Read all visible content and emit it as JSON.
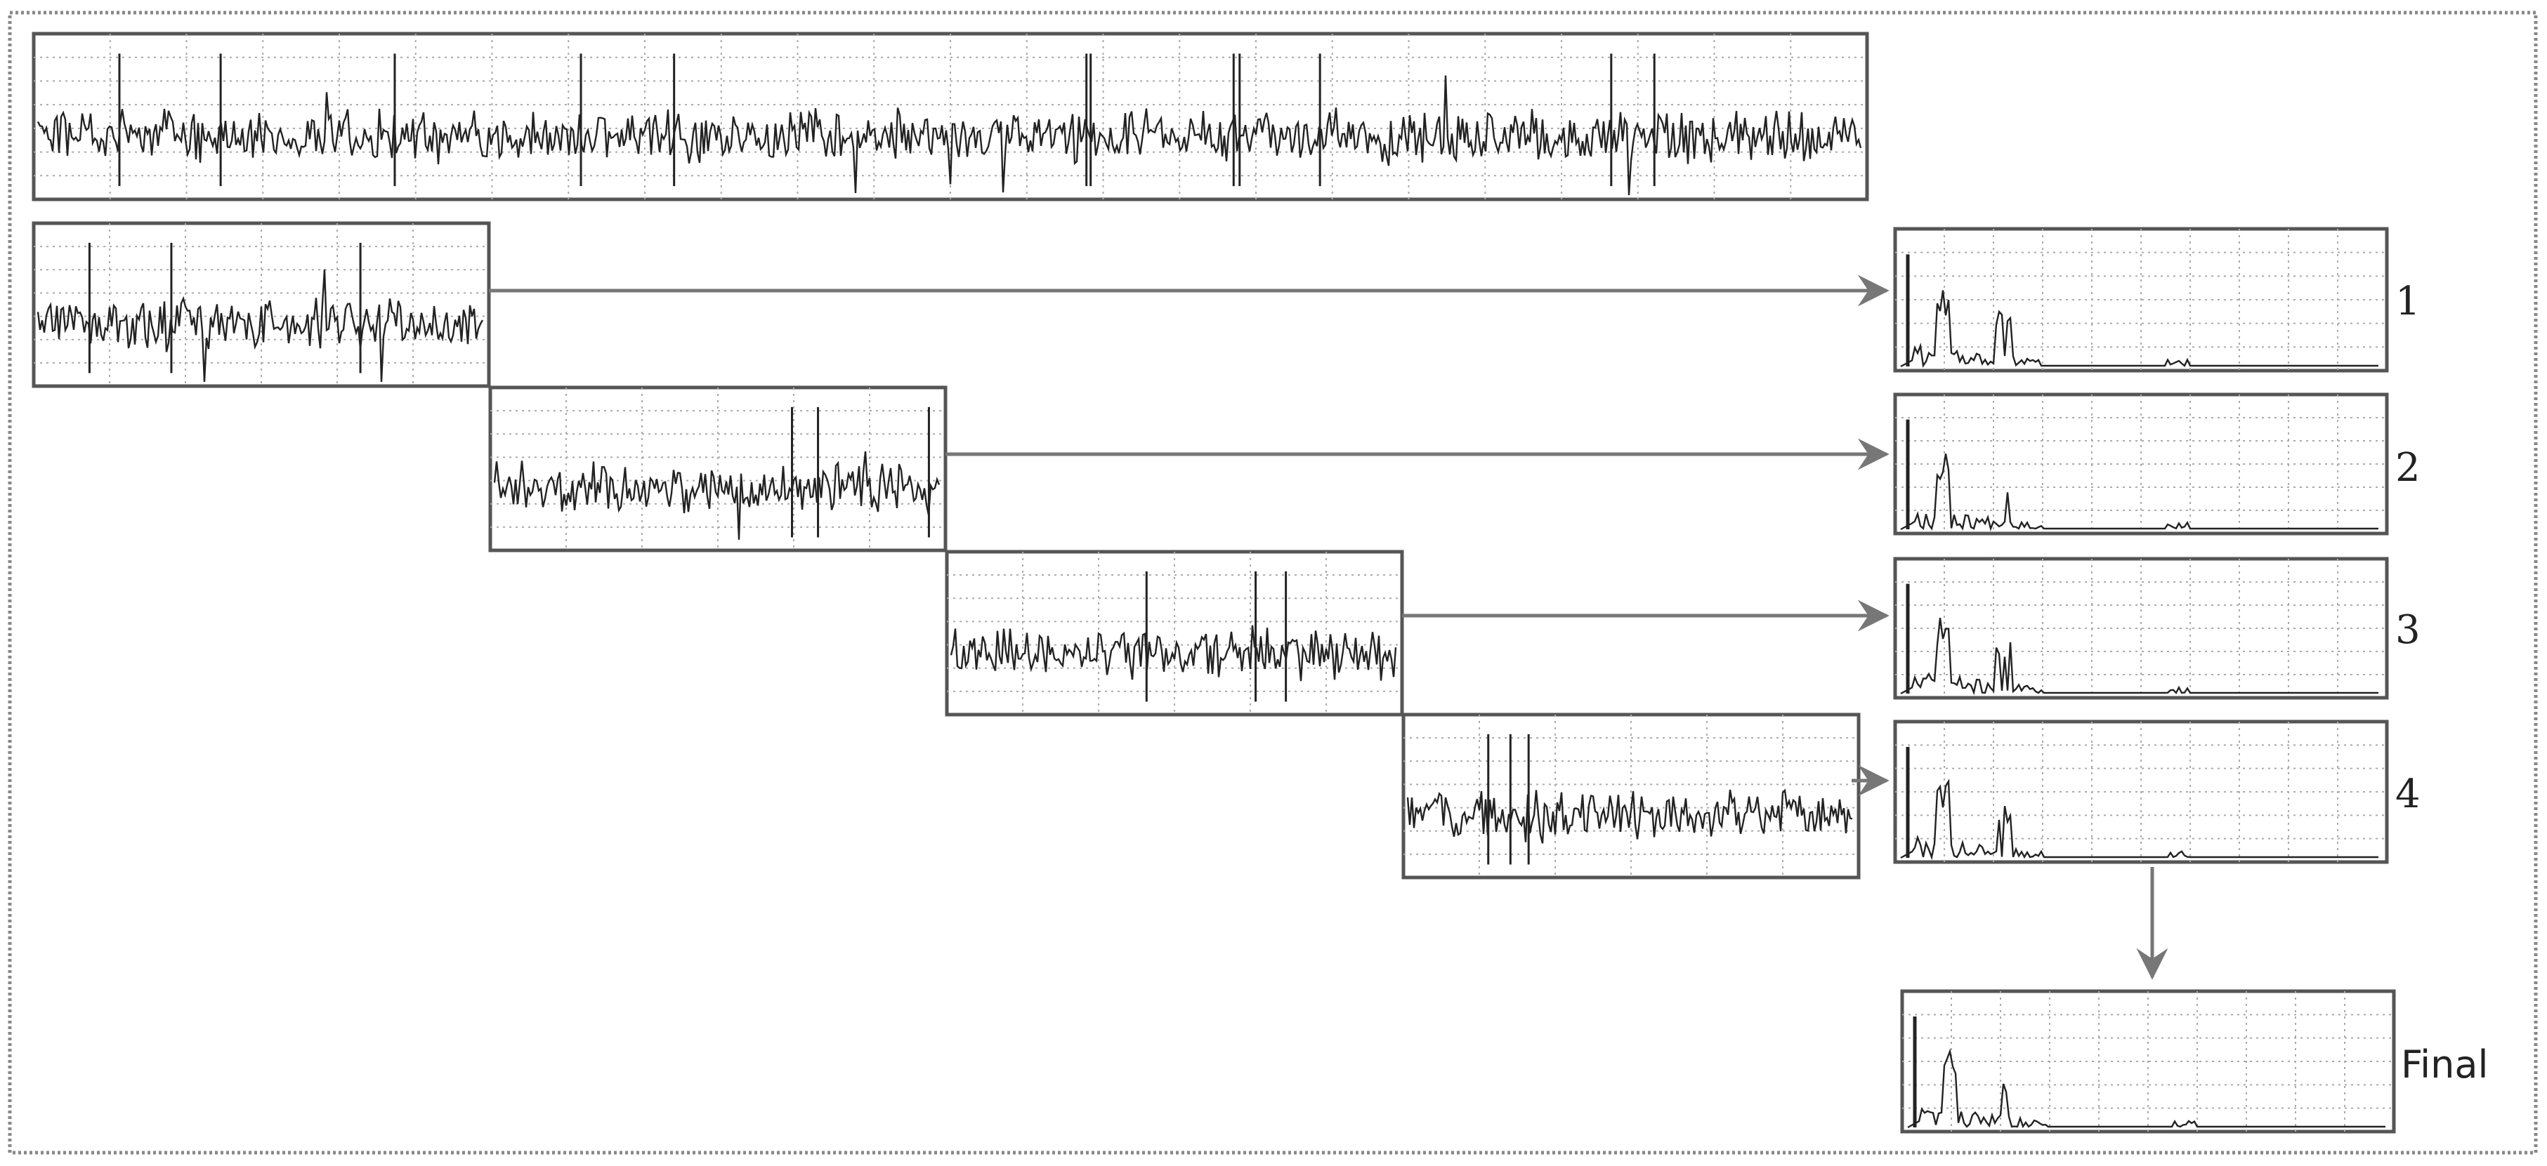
{
  "diagram": {
    "nodes": [
      {
        "id": "full-signal",
        "kind": "signal",
        "label": ""
      },
      {
        "id": "segment-1",
        "kind": "signal",
        "label": ""
      },
      {
        "id": "segment-2",
        "kind": "signal",
        "label": ""
      },
      {
        "id": "segment-3",
        "kind": "signal",
        "label": ""
      },
      {
        "id": "segment-4",
        "kind": "signal",
        "label": ""
      },
      {
        "id": "spectrum-1",
        "kind": "spectrum",
        "label": "1"
      },
      {
        "id": "spectrum-2",
        "kind": "spectrum",
        "label": "2"
      },
      {
        "id": "spectrum-3",
        "kind": "spectrum",
        "label": "3"
      },
      {
        "id": "spectrum-4",
        "kind": "spectrum",
        "label": "4"
      },
      {
        "id": "spectrum-final",
        "kind": "spectrum",
        "label": "Final"
      }
    ],
    "edges": [
      {
        "from": "segment-1",
        "to": "spectrum-1"
      },
      {
        "from": "segment-2",
        "to": "spectrum-2"
      },
      {
        "from": "segment-3",
        "to": "spectrum-3"
      },
      {
        "from": "segment-4",
        "to": "spectrum-4"
      },
      {
        "from": "spectrum-4",
        "to": "spectrum-final"
      }
    ],
    "colors": {
      "frame": "#888888",
      "panel_border": "#555555",
      "panel_fill": "#ffffff",
      "grid": "#aaaaaa",
      "trace": "#222222",
      "arrow": "#777777"
    }
  }
}
